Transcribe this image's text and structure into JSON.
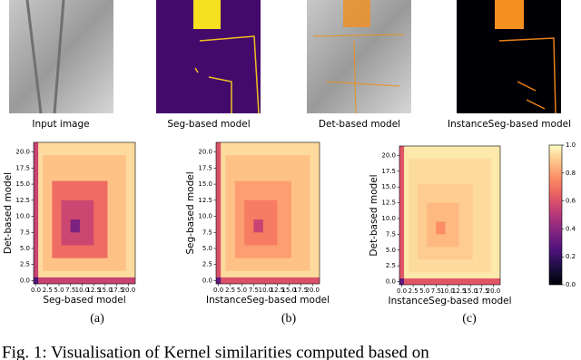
{
  "images": [
    {
      "caption": "Input image"
    },
    {
      "caption": "Seg-based model"
    },
    {
      "caption": "Det-based model"
    },
    {
      "caption": "InstanceSeg-based model"
    }
  ],
  "heatmaps": [
    {
      "type": "heatmap",
      "panel": "(a)",
      "xlabel": "Seg-based model",
      "ylabel": "Det-based model",
      "xlim": [
        -0.5,
        21.5
      ],
      "ylim": [
        -0.5,
        21.5
      ],
      "xticks": [
        {
          "value": 0,
          "label": "0.0"
        },
        2.5,
        {
          "value": 5,
          "label": "5.0"
        },
        7.5,
        {
          "value": 10,
          "label": "10.0"
        },
        12.5,
        {
          "value": 15,
          "label": "15.0"
        },
        17.5,
        {
          "value": 20,
          "label": "20.0"
        }
      ],
      "yticks": [
        {
          "value": 0,
          "label": "0.0"
        },
        2.5,
        {
          "value": 5,
          "label": "5.0"
        },
        7.5,
        {
          "value": 10,
          "label": "10.0"
        },
        12.5,
        {
          "value": 15,
          "label": "15.0"
        },
        17.5,
        {
          "value": 20,
          "label": "20.0"
        }
      ],
      "blocks": [
        {
          "from": 0,
          "to": 21,
          "value": 0.93
        },
        {
          "from": 2,
          "to": 19,
          "value": 0.88
        },
        {
          "from": 4,
          "to": 15,
          "value": 0.68
        },
        {
          "from": 6,
          "to": 12,
          "value": 0.56
        },
        {
          "from": 8,
          "to": 9,
          "value": 0.36
        }
      ],
      "edge_value": 0.55,
      "corner_value": 0.25
    },
    {
      "type": "heatmap",
      "panel": "(b)",
      "xlabel": "InstanceSeg-based model",
      "ylabel": "Seg-based model",
      "xlim": [
        -0.5,
        21.5
      ],
      "ylim": [
        -0.5,
        21.5
      ],
      "xticks": [
        {
          "value": 0,
          "label": "0.0"
        },
        2.5,
        {
          "value": 5,
          "label": "5.0"
        },
        7.5,
        {
          "value": 10,
          "label": "10.0"
        },
        12.5,
        {
          "value": 15,
          "label": "15.0"
        },
        17.5,
        {
          "value": 20,
          "label": "20.0"
        }
      ],
      "yticks": [
        {
          "value": 0,
          "label": "0.0"
        },
        2.5,
        {
          "value": 5,
          "label": "5.0"
        },
        7.5,
        {
          "value": 10,
          "label": "10.0"
        },
        12.5,
        {
          "value": 15,
          "label": "15.0"
        },
        17.5,
        {
          "value": 20,
          "label": "20.0"
        }
      ],
      "blocks": [
        {
          "from": 0,
          "to": 21,
          "value": 0.93
        },
        {
          "from": 2,
          "to": 19,
          "value": 0.88
        },
        {
          "from": 4,
          "to": 15,
          "value": 0.8
        },
        {
          "from": 6,
          "to": 12,
          "value": 0.72
        },
        {
          "from": 8,
          "to": 9,
          "value": 0.55
        }
      ],
      "edge_value": 0.6,
      "corner_value": 0.3
    },
    {
      "type": "heatmap",
      "panel": "(c)",
      "xlabel": "InstanceSeg-based model",
      "ylabel": "Det-based model",
      "xlim": [
        -0.5,
        21.5
      ],
      "ylim": [
        -0.5,
        21.5
      ],
      "xticks": [
        {
          "value": 0,
          "label": "0.0"
        },
        2.5,
        {
          "value": 5,
          "label": "5.0"
        },
        7.5,
        {
          "value": 10,
          "label": "10.0"
        },
        12.5,
        {
          "value": 15,
          "label": "15.0"
        },
        17.5,
        {
          "value": 20,
          "label": "20.0"
        }
      ],
      "yticks": [
        {
          "value": 0,
          "label": "0.0"
        },
        2.5,
        {
          "value": 5,
          "label": "5.0"
        },
        7.5,
        {
          "value": 10,
          "label": "10.0"
        },
        12.5,
        {
          "value": 15,
          "label": "15.0"
        },
        17.5,
        {
          "value": 20,
          "label": "20.0"
        }
      ],
      "blocks": [
        {
          "from": 0,
          "to": 21,
          "value": 0.96
        },
        {
          "from": 2,
          "to": 19,
          "value": 0.93
        },
        {
          "from": 4,
          "to": 15,
          "value": 0.9
        },
        {
          "from": 6,
          "to": 12,
          "value": 0.86
        },
        {
          "from": 8,
          "to": 9,
          "value": 0.76
        }
      ],
      "edge_value": 0.62,
      "corner_value": 0.3
    }
  ],
  "colorbar": {
    "lim": [
      0,
      1
    ],
    "ticks": [
      {
        "value": 0,
        "label": "0.0"
      },
      0.2,
      0.4,
      0.6,
      0.8,
      {
        "value": 1,
        "label": "1.0"
      }
    ]
  },
  "caption": "Fig. 1: Visualisation of Kernel similarities computed based on"
}
